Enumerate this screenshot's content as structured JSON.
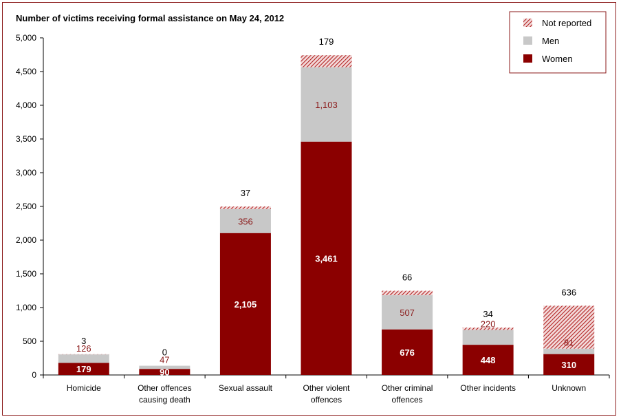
{
  "chart_data": {
    "type": "bar",
    "stacked": true,
    "title": "Number of victims receiving formal assistance on May 24, 2012",
    "xlabel": "",
    "ylabel": "",
    "ylim": [
      0,
      5000
    ],
    "yticks": [
      0,
      500,
      1000,
      1500,
      2000,
      2500,
      3000,
      3500,
      4000,
      4500,
      5000
    ],
    "ytick_labels": [
      "0",
      "500",
      "1,000",
      "1,500",
      "2,000",
      "2,500",
      "3,000",
      "3,500",
      "4,000",
      "4,500",
      "5,000"
    ],
    "categories": [
      [
        "Homicide"
      ],
      [
        "Other offences",
        "causing death"
      ],
      [
        "Sexual assault"
      ],
      [
        "Other violent",
        "offences"
      ],
      [
        "Other criminal",
        "offences"
      ],
      [
        "Other incidents"
      ],
      [
        "Unknown"
      ]
    ],
    "series": [
      {
        "name": "Women",
        "values": [
          179,
          90,
          2105,
          3461,
          676,
          448,
          310
        ],
        "labels": [
          "179",
          "90",
          "2,105",
          "3,461",
          "676",
          "448",
          "310"
        ],
        "color": "#8b0000"
      },
      {
        "name": "Men",
        "values": [
          126,
          47,
          356,
          1103,
          507,
          220,
          81
        ],
        "labels": [
          "126",
          "47",
          "356",
          "1,103",
          "507",
          "220",
          "81"
        ],
        "color": "#c8c8c8"
      },
      {
        "name": "Not reported",
        "values": [
          3,
          0,
          37,
          179,
          66,
          34,
          636
        ],
        "labels": [
          "3",
          "0",
          "37",
          "179",
          "66",
          "34",
          "636"
        ],
        "color": "#c0504d"
      }
    ],
    "legend": {
      "position": "top-right",
      "order": [
        "Not reported",
        "Men",
        "Women"
      ]
    },
    "grid": false
  }
}
